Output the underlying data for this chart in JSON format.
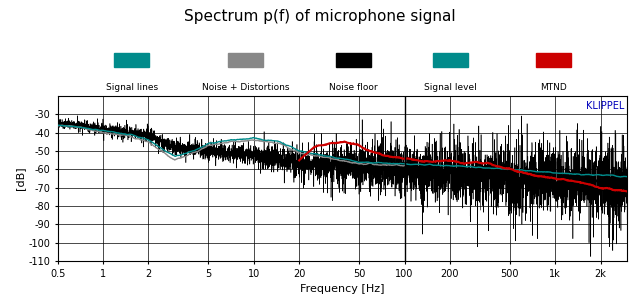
{
  "title": "Spectrum p(f) of microphone signal",
  "xlabel": "Frequency [Hz]",
  "ylabel": "[dB]",
  "xmin": 0.5,
  "xmax": 3000,
  "ymin": -110,
  "ymax": -20,
  "yticks": [
    -30,
    -40,
    -50,
    -60,
    -70,
    -80,
    -90,
    -100,
    -110
  ],
  "xtick_labels": [
    "0.5",
    "1",
    "2",
    "5",
    "10",
    "20",
    "50",
    "100",
    "200",
    "500",
    "1k",
    "2k"
  ],
  "xtick_vals": [
    0.5,
    1,
    2,
    5,
    10,
    20,
    50,
    100,
    200,
    500,
    1000,
    2000
  ],
  "legend_configs": [
    {
      "label": "Signal lines",
      "color": "#008B8B",
      "xf": 0.13
    },
    {
      "label": "Noise + Distortions",
      "color": "#888888",
      "xf": 0.33
    },
    {
      "label": "Noise floor",
      "color": "#000000",
      "xf": 0.52
    },
    {
      "label": "Signal level",
      "color": "#008B8B",
      "xf": 0.69
    },
    {
      "label": "MTND",
      "color": "#cc0000",
      "xf": 0.87
    }
  ],
  "klippel_color": "#0000bb",
  "background_color": "#ffffff",
  "signal_lines_color": "#008B8B",
  "noise_dist_color": "#888888",
  "noise_floor_color": "#000000",
  "mtnd_color": "#cc0000",
  "vline_x": 100
}
